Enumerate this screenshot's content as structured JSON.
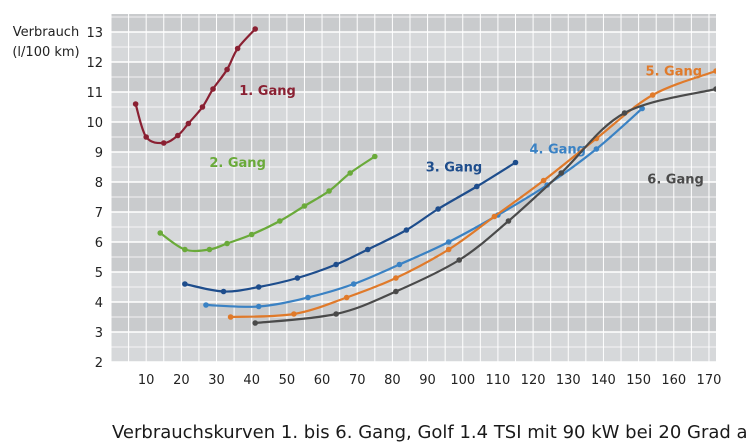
{
  "chart_data": {
    "type": "line",
    "ylabel_lines": [
      "Verbrauch",
      "(l/100 km)"
    ],
    "xlabel": "",
    "xlim": [
      0,
      172
    ],
    "ylim": [
      2,
      13.6
    ],
    "x_ticks": [
      10,
      20,
      30,
      40,
      50,
      60,
      70,
      80,
      90,
      100,
      110,
      120,
      130,
      140,
      150,
      160,
      170
    ],
    "y_ticks": [
      2,
      3,
      4,
      5,
      6,
      7,
      8,
      9,
      10,
      11,
      12,
      13
    ],
    "grid": true,
    "series": [
      {
        "name": "1. Gang",
        "color": "#8a2032",
        "label_x": 44.5,
        "label_y": 10.9,
        "points": [
          [
            7,
            10.6
          ],
          [
            10,
            9.5
          ],
          [
            15,
            9.3
          ],
          [
            19,
            9.55
          ],
          [
            22,
            9.95
          ],
          [
            26,
            10.5
          ],
          [
            29,
            11.1
          ],
          [
            33,
            11.75
          ],
          [
            36,
            12.45
          ],
          [
            41,
            13.1
          ]
        ]
      },
      {
        "name": "2. Gang",
        "color": "#6aaa3a",
        "label_x": 36,
        "label_y": 8.5,
        "points": [
          [
            14,
            6.3
          ],
          [
            21,
            5.75
          ],
          [
            28,
            5.75
          ],
          [
            33,
            5.95
          ],
          [
            40,
            6.25
          ],
          [
            48,
            6.7
          ],
          [
            55,
            7.2
          ],
          [
            62,
            7.7
          ],
          [
            68,
            8.3
          ],
          [
            75,
            8.85
          ]
        ]
      },
      {
        "name": "3. Gang",
        "color": "#1e4d8c",
        "label_x": 97.5,
        "label_y": 8.35,
        "points": [
          [
            21,
            4.6
          ],
          [
            32,
            4.35
          ],
          [
            42,
            4.5
          ],
          [
            53,
            4.8
          ],
          [
            64,
            5.25
          ],
          [
            73,
            5.75
          ],
          [
            84,
            6.4
          ],
          [
            93,
            7.1
          ],
          [
            104,
            7.85
          ],
          [
            115,
            8.65
          ]
        ]
      },
      {
        "name": "4. Gang",
        "color": "#3a82c4",
        "label_x": 127,
        "label_y": 8.95,
        "points": [
          [
            27,
            3.9
          ],
          [
            42,
            3.85
          ],
          [
            56,
            4.15
          ],
          [
            69,
            4.6
          ],
          [
            82,
            5.25
          ],
          [
            96,
            6.0
          ],
          [
            110,
            6.9
          ],
          [
            124,
            7.9
          ],
          [
            138,
            9.1
          ],
          [
            151,
            10.45
          ]
        ]
      },
      {
        "name": "5. Gang",
        "color": "#e07a2a",
        "label_x": 160,
        "label_y": 11.55,
        "points": [
          [
            34,
            3.5
          ],
          [
            52,
            3.6
          ],
          [
            67,
            4.15
          ],
          [
            81,
            4.8
          ],
          [
            96,
            5.75
          ],
          [
            109,
            6.85
          ],
          [
            123,
            8.05
          ],
          [
            138,
            9.45
          ],
          [
            154,
            10.9
          ],
          [
            172,
            11.7
          ]
        ]
      },
      {
        "name": "6. Gang",
        "color": "#4a4a4a",
        "label_x": 160.5,
        "label_y": 7.95,
        "points": [
          [
            41,
            3.3
          ],
          [
            64,
            3.6
          ],
          [
            81,
            4.35
          ],
          [
            99,
            5.4
          ],
          [
            113,
            6.7
          ],
          [
            128,
            8.3
          ],
          [
            146,
            10.3
          ],
          [
            172,
            11.1
          ]
        ]
      }
    ],
    "caption": "Verbrauchskurven 1. bis 6. Gang, Golf 1.4 TSI mit 90 kW bei 20 Grad a"
  }
}
